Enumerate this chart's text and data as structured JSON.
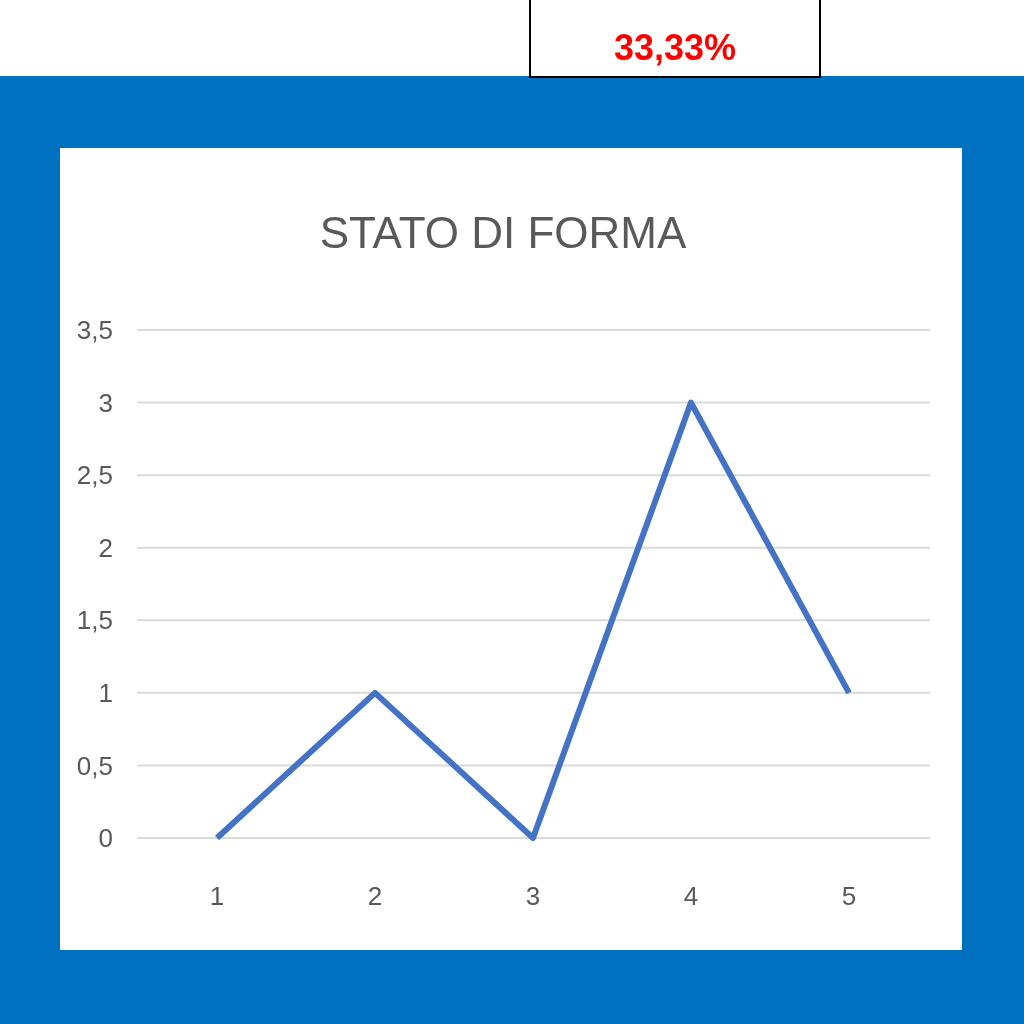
{
  "chart_data": {
    "type": "line",
    "title": "STATO DI FORMA",
    "annotations": [
      "33,33%"
    ],
    "categories": [
      "1",
      "2",
      "3",
      "4",
      "5"
    ],
    "series": [
      {
        "color": "#4472c4",
        "values": [
          0,
          1,
          0,
          3,
          1
        ]
      }
    ],
    "ylim": [
      0,
      3.5
    ],
    "yticks": [
      {
        "value": 0,
        "label": "0"
      },
      {
        "value": 0.5,
        "label": "0,5"
      },
      {
        "value": 1,
        "label": "1"
      },
      {
        "value": 1.5,
        "label": "1,5"
      },
      {
        "value": 2,
        "label": "2"
      },
      {
        "value": 2.5,
        "label": "2,5"
      },
      {
        "value": 3,
        "label": "3"
      },
      {
        "value": 3.5,
        "label": "3,5"
      }
    ],
    "grid": "y",
    "marker": "none",
    "line_style": "solid"
  }
}
